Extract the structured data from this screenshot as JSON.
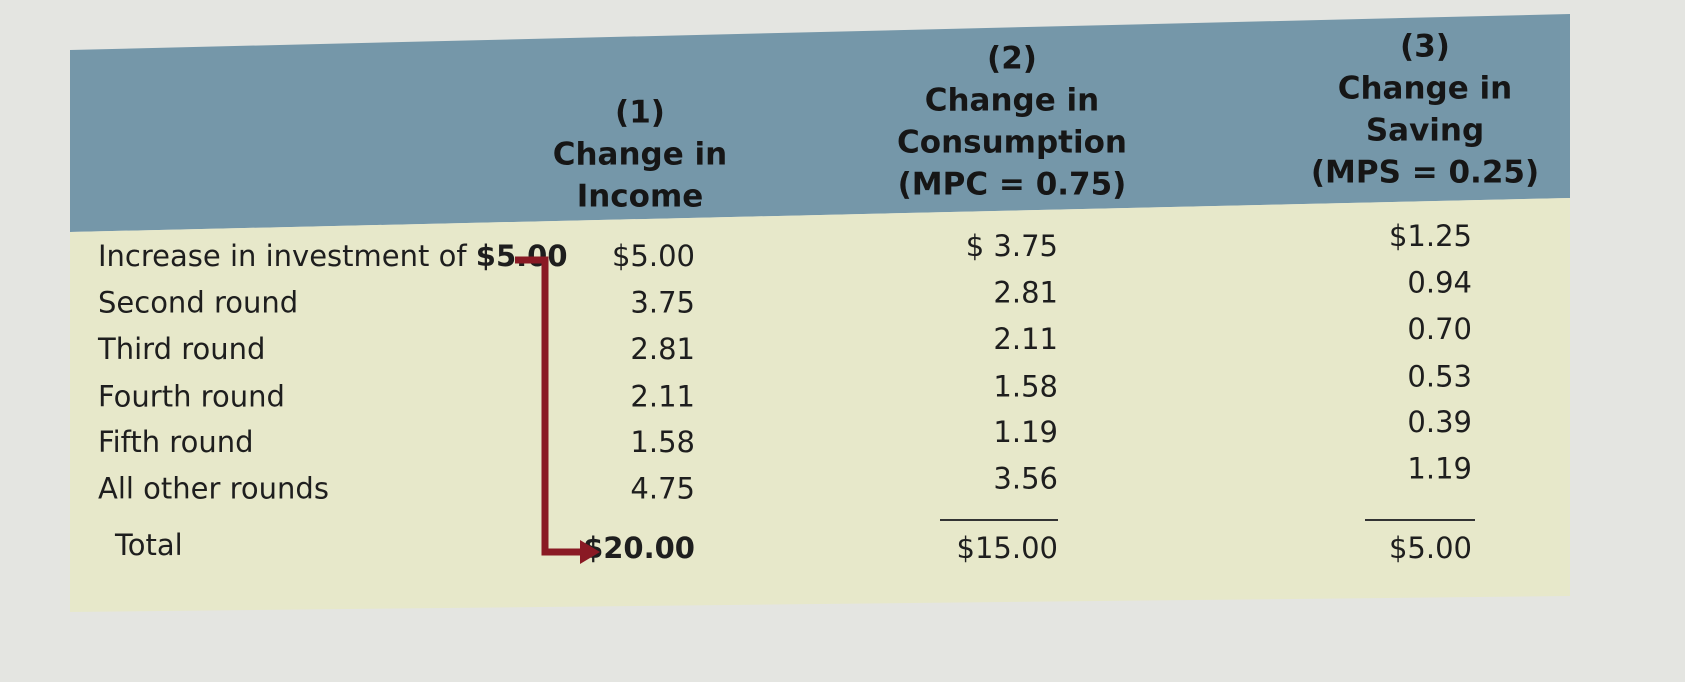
{
  "table": {
    "header": [
      [
        "(1)",
        "Change in",
        "Income"
      ],
      [
        "(2)",
        "Change in",
        "Consumption",
        "(MPC = 0.75)"
      ],
      [
        "(3)",
        "Change in",
        "Saving",
        "(MPS = 0.25)"
      ]
    ],
    "rows": [
      {
        "label": "Increase in investment of",
        "label_amount": "$5.00",
        "cells": [
          "$5.00",
          "$ 3.75",
          "$1.25"
        ]
      },
      {
        "label": "Second round",
        "cells": [
          "3.75",
          "2.81",
          "0.94"
        ]
      },
      {
        "label": "Third round",
        "cells": [
          "2.81",
          "2.11",
          "0.70"
        ]
      },
      {
        "label": "Fourth round",
        "cells": [
          "2.11",
          "1.58",
          "0.53"
        ]
      },
      {
        "label": "Fifth round",
        "cells": [
          "1.58",
          "1.19",
          "0.39"
        ]
      },
      {
        "label": "All other rounds",
        "cells": [
          "4.75",
          "3.56",
          "1.19"
        ]
      }
    ],
    "total": {
      "label": "Total",
      "cells": [
        "$20.00",
        "$15.00",
        "$5.00"
      ]
    }
  }
}
